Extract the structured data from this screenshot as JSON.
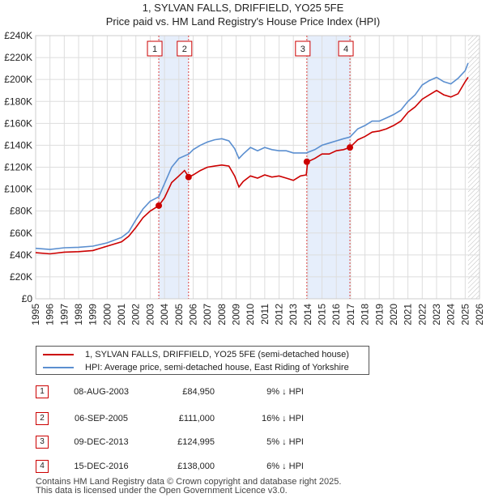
{
  "chart_data": {
    "type": "line",
    "title": "1, SYLVAN FALLS, DRIFFIELD, YO25 5FE",
    "subtitle": "Price paid vs. HM Land Registry's House Price Index (HPI)",
    "xlim": [
      1995,
      2026
    ],
    "ylim": [
      0,
      240000
    ],
    "x_ticks": [
      "1995",
      "1996",
      "1997",
      "1998",
      "1999",
      "2000",
      "2001",
      "2002",
      "2003",
      "2004",
      "2005",
      "2006",
      "2007",
      "2008",
      "2009",
      "2010",
      "2011",
      "2012",
      "2013",
      "2014",
      "2015",
      "2016",
      "2017",
      "2018",
      "2019",
      "2020",
      "2021",
      "2022",
      "2023",
      "2024",
      "2025",
      "2026"
    ],
    "y_ticks": [
      {
        "value": 0,
        "label": "£0"
      },
      {
        "value": 20000,
        "label": "£20K"
      },
      {
        "value": 40000,
        "label": "£40K"
      },
      {
        "value": 60000,
        "label": "£60K"
      },
      {
        "value": 80000,
        "label": "£80K"
      },
      {
        "value": 100000,
        "label": "£100K"
      },
      {
        "value": 120000,
        "label": "£120K"
      },
      {
        "value": 140000,
        "label": "£140K"
      },
      {
        "value": 160000,
        "label": "£160K"
      },
      {
        "value": 180000,
        "label": "£180K"
      },
      {
        "value": 200000,
        "label": "£200K"
      },
      {
        "value": 220000,
        "label": "£220K"
      },
      {
        "value": 240000,
        "label": "£240K"
      }
    ],
    "grid": true,
    "series": [
      {
        "name": "1, SYLVAN FALLS, DRIFFIELD, YO25 5FE (semi-detached house)",
        "color": "#cc0000",
        "x": [
          1995.0,
          1996.0,
          1997.0,
          1998.0,
          1999.0,
          2000.0,
          2001.0,
          2001.5,
          2002.0,
          2002.5,
          2003.0,
          2003.6,
          2004.0,
          2004.5,
          2005.0,
          2005.4,
          2005.7,
          2006.0,
          2006.5,
          2007.0,
          2007.5,
          2008.0,
          2008.5,
          2008.9,
          2009.2,
          2009.5,
          2010.0,
          2010.5,
          2011.0,
          2011.5,
          2012.0,
          2012.5,
          2013.0,
          2013.5,
          2013.9,
          2014.0,
          2014.5,
          2015.0,
          2015.5,
          2016.0,
          2016.5,
          2016.95,
          2017.5,
          2018.0,
          2018.5,
          2019.0,
          2019.5,
          2020.0,
          2020.5,
          2021.0,
          2021.5,
          2022.0,
          2022.5,
          2023.0,
          2023.5,
          2024.0,
          2024.5,
          2025.0,
          2025.2
        ],
        "values": [
          42000,
          41000,
          42500,
          43000,
          44000,
          48000,
          52000,
          57000,
          65000,
          74000,
          80000,
          84950,
          92000,
          106000,
          112000,
          117000,
          111000,
          113000,
          117000,
          120000,
          121000,
          122000,
          121000,
          112000,
          102000,
          107000,
          112000,
          110000,
          113000,
          111000,
          112000,
          110000,
          108000,
          112000,
          113000,
          124995,
          128000,
          132000,
          132000,
          135000,
          136000,
          138000,
          145000,
          148000,
          152000,
          153000,
          155000,
          158000,
          162000,
          170000,
          175000,
          182000,
          186000,
          190000,
          186000,
          184000,
          187000,
          198000,
          202000
        ]
      },
      {
        "name": "HPI: Average price, semi-detached house, East Riding of Yorkshire",
        "color": "#5b8fd0",
        "x": [
          1995.0,
          1996.0,
          1997.0,
          1998.0,
          1999.0,
          2000.0,
          2001.0,
          2001.5,
          2002.0,
          2002.5,
          2003.0,
          2003.6,
          2004.0,
          2004.5,
          2005.0,
          2005.7,
          2006.0,
          2006.5,
          2007.0,
          2007.5,
          2008.0,
          2008.5,
          2008.9,
          2009.2,
          2009.5,
          2010.0,
          2010.5,
          2011.0,
          2011.5,
          2012.0,
          2012.5,
          2013.0,
          2013.9,
          2014.5,
          2015.0,
          2015.5,
          2016.0,
          2016.5,
          2016.95,
          2017.5,
          2018.0,
          2018.5,
          2019.0,
          2019.5,
          2020.0,
          2020.5,
          2021.0,
          2021.5,
          2022.0,
          2022.5,
          2023.0,
          2023.5,
          2024.0,
          2024.5,
          2025.0,
          2025.2
        ],
        "values": [
          46000,
          45000,
          46500,
          47000,
          48000,
          51000,
          56000,
          61000,
          72000,
          82000,
          89000,
          93000,
          105000,
          120000,
          128000,
          132000,
          136000,
          140000,
          143000,
          145000,
          146000,
          144000,
          137000,
          128000,
          132000,
          138000,
          135000,
          138000,
          136000,
          135000,
          135000,
          133000,
          133000,
          136000,
          140000,
          142000,
          144000,
          146000,
          147500,
          155000,
          158000,
          162000,
          162000,
          165000,
          168000,
          172000,
          180000,
          186000,
          195000,
          199000,
          202000,
          198000,
          196000,
          201000,
          208000,
          215000
        ]
      }
    ],
    "sales": [
      {
        "id": "1",
        "date": "08-AUG-2003",
        "x": 2003.6,
        "price_value": 84950,
        "price": "£84,950",
        "hpi": "9% ↓ HPI"
      },
      {
        "id": "2",
        "date": "06-SEP-2005",
        "x": 2005.68,
        "price_value": 111000,
        "price": "£111,000",
        "hpi": "16% ↓ HPI"
      },
      {
        "id": "3",
        "date": "09-DEC-2013",
        "x": 2013.94,
        "price_value": 124995,
        "price": "£124,995",
        "hpi": "5% ↓ HPI"
      },
      {
        "id": "4",
        "date": "15-DEC-2016",
        "x": 2016.95,
        "price_value": 138000,
        "price": "£138,000",
        "hpi": "6% ↓ HPI"
      }
    ],
    "projection_start": 2025.2
  },
  "legend": {
    "property_label": "1, SYLVAN FALLS, DRIFFIELD, YO25 5FE (semi-detached house)",
    "hpi_label": "HPI: Average price, semi-detached house, East Riding of Yorkshire"
  },
  "footer": {
    "line1": "Contains HM Land Registry data © Crown copyright and database right 2025.",
    "line2": "This data is licensed under the Open Government Licence v3.0."
  },
  "colors": {
    "property": "#cc0000",
    "hpi": "#5b8fd0",
    "grid": "#dddddd",
    "shade": "#e6eefb"
  }
}
